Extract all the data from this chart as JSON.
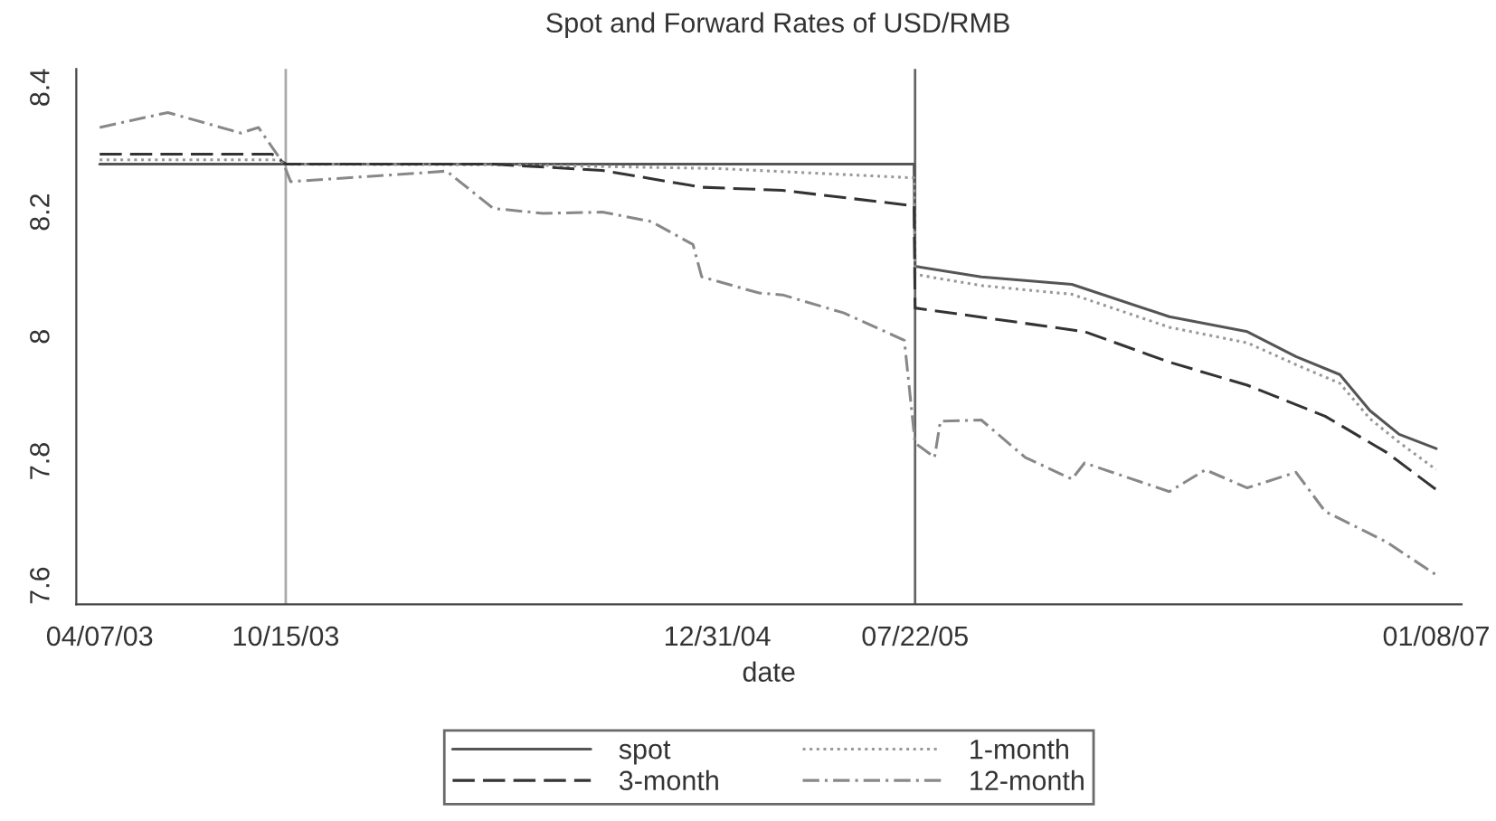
{
  "chart_data": {
    "type": "line",
    "title": "Spot and Forward Rates of USD/RMB",
    "xlabel": "date",
    "xlim": [
      "2003-03-14",
      "2007-02-03"
    ],
    "ylim": [
      7.57,
      8.43
    ],
    "xticks": [
      {
        "value": "2003-04-07",
        "label": "04/07/03"
      },
      {
        "value": "2003-10-15",
        "label": "10/15/03"
      },
      {
        "value": "2004-12-31",
        "label": "12/31/04"
      },
      {
        "value": "2005-07-22",
        "label": "07/22/05"
      },
      {
        "value": "2007-01-08",
        "label": "01/08/07"
      }
    ],
    "yticks": [
      7.6,
      7.8,
      8,
      8.2,
      8.4
    ],
    "ref_lines": [
      {
        "axis": "x",
        "value": "2003-10-15",
        "color": "#aaaaaa"
      },
      {
        "axis": "x",
        "value": "2005-07-22",
        "color": "#666666"
      }
    ],
    "grid": false,
    "legend": "bottom",
    "series": [
      {
        "name": "spot",
        "color": "#555555",
        "line_style": "solid",
        "x": [
          "2003-04-07",
          "2005-07-21",
          "2005-07-22",
          "2005-09-28",
          "2005-12-30",
          "2006-04-09",
          "2006-06-28",
          "2006-08-17",
          "2006-10-01",
          "2006-11-01",
          "2006-12-01",
          "2007-01-08"
        ],
        "values": [
          8.277,
          8.277,
          8.113,
          8.096,
          8.084,
          8.032,
          8.008,
          7.968,
          7.939,
          7.881,
          7.843,
          7.82
        ]
      },
      {
        "name": "1-month",
        "color": "#999999",
        "line_style": "dotted",
        "x": [
          "2003-04-07",
          "2003-10-13",
          "2003-10-15",
          "2004-06-01",
          "2005-01-01",
          "2005-07-21",
          "2005-07-22",
          "2005-09-28",
          "2005-12-30",
          "2006-04-09",
          "2006-06-28",
          "2006-08-17",
          "2006-10-01",
          "2006-11-01",
          "2006-12-01",
          "2007-01-08"
        ],
        "values": [
          8.284,
          8.284,
          8.277,
          8.276,
          8.27,
          8.255,
          8.1,
          8.082,
          8.068,
          8.015,
          7.99,
          7.955,
          7.925,
          7.868,
          7.83,
          7.786
        ]
      },
      {
        "name": "3-month",
        "color": "#333333",
        "line_style": "dashed",
        "x": [
          "2003-04-07",
          "2003-10-01",
          "2003-10-15",
          "2004-05-15",
          "2004-09-04",
          "2004-12-15",
          "2005-03-08",
          "2005-07-21",
          "2005-07-22",
          "2006-01-12",
          "2006-04-09",
          "2006-06-28",
          "2006-09-16",
          "2006-11-18",
          "2007-01-08"
        ],
        "values": [
          8.293,
          8.293,
          8.277,
          8.277,
          8.267,
          8.24,
          8.235,
          8.21,
          8.046,
          8.008,
          7.959,
          7.922,
          7.872,
          7.814,
          7.754
        ]
      },
      {
        "name": "12-month",
        "color": "#888888",
        "line_style": "dashdot",
        "x": [
          "2003-04-07",
          "2003-06-16",
          "2003-08-30",
          "2003-09-17",
          "2003-10-13",
          "2003-10-20",
          "2004-03-02",
          "2004-03-28",
          "2004-05-15",
          "2004-07-05",
          "2004-09-04",
          "2004-10-24",
          "2004-12-06",
          "2004-12-15",
          "2005-02-12",
          "2005-03-08",
          "2005-05-10",
          "2005-07-11",
          "2005-07-22",
          "2005-08-11",
          "2005-08-17",
          "2005-09-28",
          "2005-11-12",
          "2005-12-30",
          "2006-01-12",
          "2006-04-09",
          "2006-05-16",
          "2006-06-28",
          "2006-08-17",
          "2006-09-16",
          "2006-11-18",
          "2007-01-08"
        ],
        "values": [
          8.336,
          8.36,
          8.327,
          8.336,
          8.277,
          8.249,
          8.263,
          8.266,
          8.206,
          8.198,
          8.2,
          8.185,
          8.148,
          8.096,
          8.07,
          8.067,
          8.038,
          7.994,
          7.829,
          7.806,
          7.864,
          7.866,
          7.806,
          7.771,
          7.797,
          7.751,
          7.786,
          7.757,
          7.782,
          7.719,
          7.67,
          7.617
        ]
      }
    ]
  }
}
